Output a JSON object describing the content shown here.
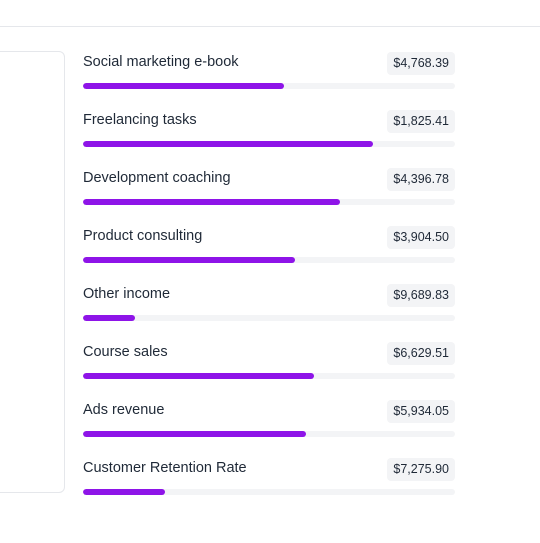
{
  "colors": {
    "accent": "#8e14e8",
    "track": "#f3f4f6",
    "badge_bg": "#f3f4f6",
    "divider": "#e5e7eb",
    "text": "#1f2937"
  },
  "revenue_list": {
    "items": [
      {
        "label": "Social marketing e-book",
        "amount": "$4,768.39",
        "progress": 0.54
      },
      {
        "label": "Freelancing tasks",
        "amount": "$1,825.41",
        "progress": 0.78
      },
      {
        "label": "Development coaching",
        "amount": "$4,396.78",
        "progress": 0.69
      },
      {
        "label": "Product consulting",
        "amount": "$3,904.50",
        "progress": 0.57
      },
      {
        "label": "Other income",
        "amount": "$9,689.83",
        "progress": 0.14
      },
      {
        "label": "Course sales",
        "amount": "$6,629.51",
        "progress": 0.62
      },
      {
        "label": "Ads revenue",
        "amount": "$5,934.05",
        "progress": 0.6
      },
      {
        "label": "Customer Retention Rate",
        "amount": "$7,275.90",
        "progress": 0.22
      }
    ]
  }
}
